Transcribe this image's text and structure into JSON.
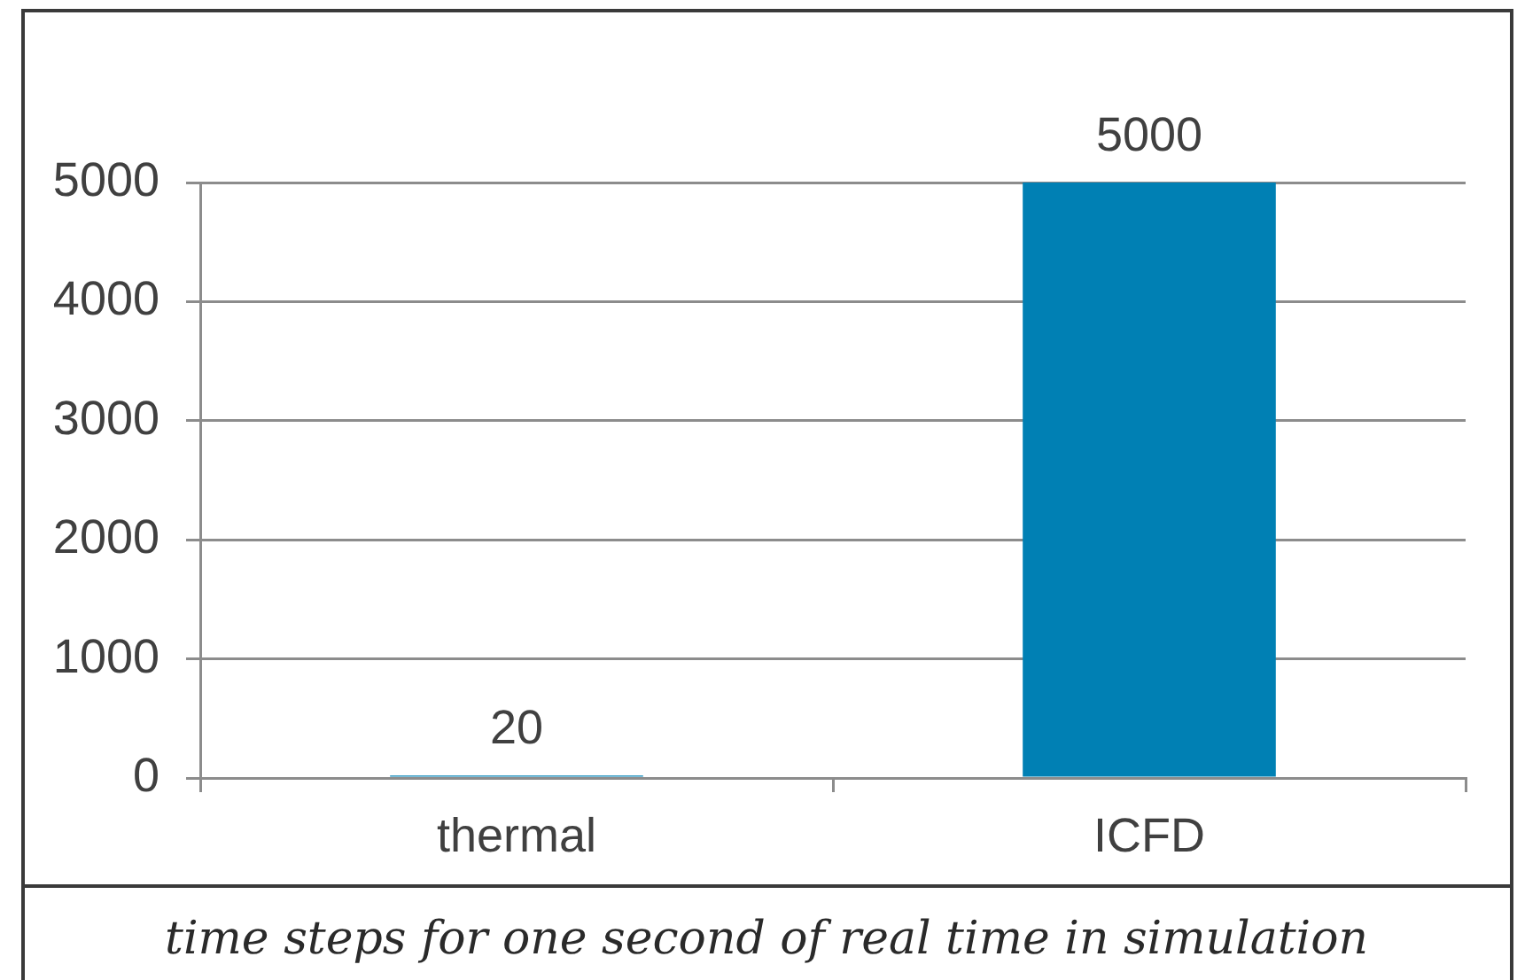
{
  "chart_data": {
    "type": "bar",
    "categories": [
      "thermal",
      "ICFD"
    ],
    "values": [
      20,
      5000
    ],
    "color": "#0080b4",
    "ylim": [
      0,
      5000
    ],
    "yticks": [
      0,
      1000,
      2000,
      3000,
      4000,
      5000
    ],
    "grid": "y",
    "data_labels": true,
    "annotations": [
      "time steps for one second of real time in simulation"
    ]
  }
}
